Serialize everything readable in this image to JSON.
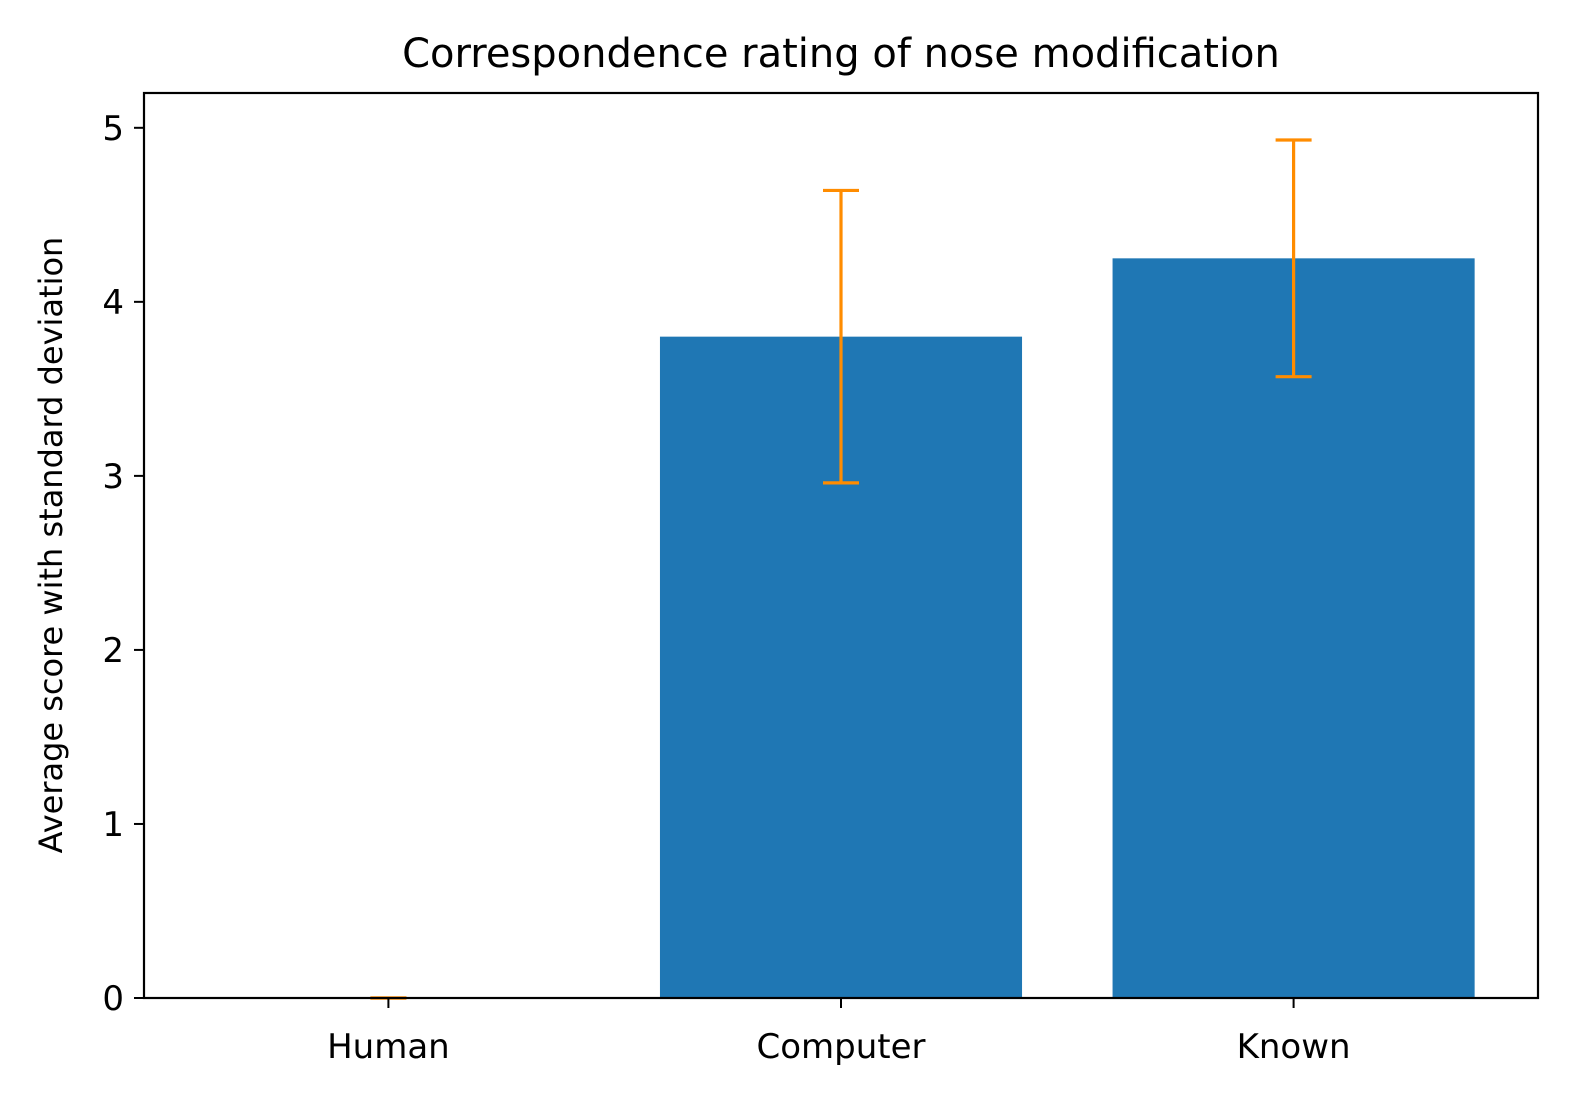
{
  "chart_data": {
    "type": "bar",
    "title": "Correspondence rating of nose modification",
    "xlabel": "",
    "ylabel": "Average score with standard deviation",
    "categories": [
      "Human",
      "Computer",
      "Known"
    ],
    "values": [
      0,
      3.8,
      4.25
    ],
    "error": [
      0,
      0.84,
      0.68
    ],
    "ylim": [
      0,
      5.2
    ],
    "yticks": [
      0,
      1,
      2,
      3,
      4,
      5
    ],
    "grid": false,
    "legend": "none",
    "colors": {
      "bar": "#1f77b4",
      "error": "#ff8c00",
      "axis": "#000000"
    }
  }
}
